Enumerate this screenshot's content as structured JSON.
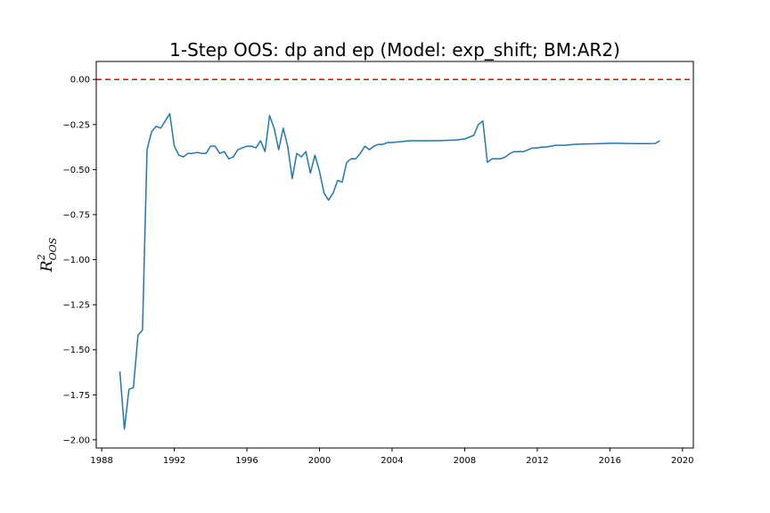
{
  "chart_data": {
    "type": "line",
    "title": "1-Step OOS: dp and ep (Model: exp_shift; BM:AR2)",
    "xlabel": "",
    "ylabel": {
      "base": "R",
      "sup": "2",
      "sub": "OOS"
    },
    "xlim": [
      1987.7,
      2020.6
    ],
    "ylim": [
      -2.045,
      0.1
    ],
    "xticks": [
      1988,
      1992,
      1996,
      2000,
      2004,
      2008,
      2012,
      2016,
      2020
    ],
    "xtick_labels": [
      "1988",
      "1992",
      "1996",
      "2000",
      "2004",
      "2008",
      "2012",
      "2016",
      "2020"
    ],
    "yticks": [
      0.0,
      -0.25,
      -0.5,
      -0.75,
      -1.0,
      -1.25,
      -1.5,
      -1.75,
      -2.0
    ],
    "ytick_labels": [
      "0.00",
      "−0.25",
      "−0.50",
      "−0.75",
      "−1.00",
      "−1.25",
      "−1.50",
      "−1.75",
      "−2.00"
    ],
    "grid": false,
    "reference_line": {
      "y": 0.0,
      "color": "#ff0000",
      "style": "dashed"
    },
    "series": [
      {
        "color": "#1f77b4",
        "x": [
          1989.0,
          1989.25,
          1989.5,
          1989.75,
          1990.0,
          1990.25,
          1990.5,
          1990.75,
          1991.0,
          1991.25,
          1991.5,
          1991.75,
          1992.0,
          1992.25,
          1992.5,
          1992.75,
          1993.0,
          1993.25,
          1993.5,
          1993.75,
          1994.0,
          1994.25,
          1994.5,
          1994.75,
          1995.0,
          1995.25,
          1995.5,
          1995.75,
          1996.0,
          1996.25,
          1996.5,
          1996.75,
          1997.0,
          1997.25,
          1997.5,
          1997.75,
          1998.0,
          1998.25,
          1998.5,
          1998.75,
          1999.0,
          1999.25,
          1999.5,
          1999.75,
          2000.0,
          2000.25,
          2000.5,
          2000.75,
          2001.0,
          2001.25,
          2001.5,
          2001.75,
          2002.0,
          2002.25,
          2002.5,
          2002.75,
          2003.0,
          2003.25,
          2003.5,
          2003.75,
          2004.0,
          2004.5,
          2005.0,
          2005.5,
          2006.0,
          2006.5,
          2007.0,
          2007.5,
          2008.0,
          2008.25,
          2008.5,
          2008.75,
          2009.0,
          2009.25,
          2009.5,
          2009.75,
          2010.0,
          2010.25,
          2010.5,
          2010.75,
          2011.0,
          2011.25,
          2011.5,
          2011.75,
          2012.0,
          2012.25,
          2012.5,
          2012.75,
          2013.0,
          2013.5,
          2014.0,
          2014.5,
          2015.0,
          2015.5,
          2016.0,
          2016.5,
          2017.0,
          2017.5,
          2018.0,
          2018.5,
          2018.75
        ],
        "values": [
          -1.62,
          -1.94,
          -1.72,
          -1.71,
          -1.42,
          -1.39,
          -0.39,
          -0.29,
          -0.26,
          -0.27,
          -0.23,
          -0.19,
          -0.37,
          -0.42,
          -0.43,
          -0.41,
          -0.41,
          -0.405,
          -0.41,
          -0.41,
          -0.37,
          -0.37,
          -0.41,
          -0.4,
          -0.44,
          -0.43,
          -0.39,
          -0.38,
          -0.37,
          -0.37,
          -0.38,
          -0.34,
          -0.4,
          -0.2,
          -0.27,
          -0.39,
          -0.27,
          -0.37,
          -0.55,
          -0.41,
          -0.43,
          -0.4,
          -0.52,
          -0.42,
          -0.51,
          -0.63,
          -0.67,
          -0.63,
          -0.56,
          -0.57,
          -0.46,
          -0.44,
          -0.44,
          -0.41,
          -0.37,
          -0.39,
          -0.37,
          -0.36,
          -0.36,
          -0.35,
          -0.35,
          -0.345,
          -0.34,
          -0.34,
          -0.34,
          -0.34,
          -0.338,
          -0.336,
          -0.33,
          -0.32,
          -0.31,
          -0.25,
          -0.23,
          -0.46,
          -0.44,
          -0.44,
          -0.44,
          -0.43,
          -0.41,
          -0.4,
          -0.4,
          -0.4,
          -0.39,
          -0.38,
          -0.38,
          -0.375,
          -0.375,
          -0.37,
          -0.365,
          -0.365,
          -0.36,
          -0.358,
          -0.357,
          -0.356,
          -0.354,
          -0.354,
          -0.355,
          -0.356,
          -0.356,
          -0.355,
          -0.34
        ]
      }
    ]
  }
}
